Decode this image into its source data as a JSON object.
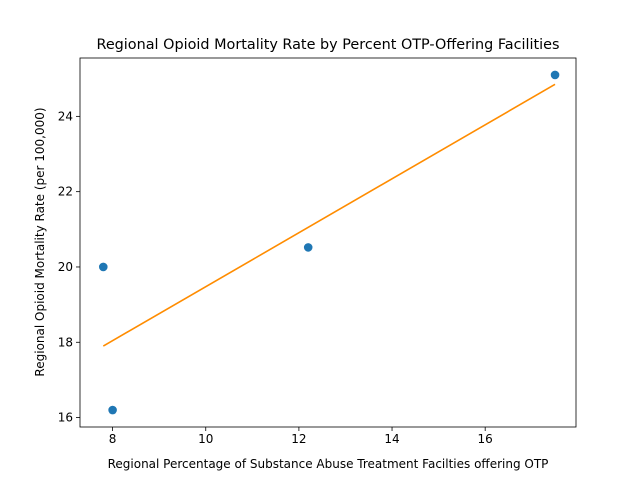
{
  "chart_data": {
    "type": "scatter",
    "title": "Regional Opioid Mortality Rate by Percent OTP-Offering Facilities",
    "xlabel": "Regional Percentage of Substance Abuse Treatment Facilties offering OTP",
    "ylabel": "Regional Opioid Mortality Rate (per 100,000)",
    "xlim": [
      7.3,
      17.95
    ],
    "ylim": [
      15.75,
      25.55
    ],
    "xticks": [
      8,
      10,
      12,
      14,
      16
    ],
    "yticks": [
      16,
      18,
      20,
      22,
      24
    ],
    "grid": false,
    "points": [
      {
        "x": 7.8,
        "y": 20.0
      },
      {
        "x": 8.0,
        "y": 16.2
      },
      {
        "x": 12.2,
        "y": 20.52
      },
      {
        "x": 17.5,
        "y": 25.1
      }
    ],
    "trendline": {
      "x_start": 7.8,
      "y_start": 17.9,
      "x_end": 17.5,
      "y_end": 24.85
    },
    "colors": {
      "points": "#1f77b4",
      "trendline": "#ff8c00",
      "axes": "#000000"
    }
  }
}
